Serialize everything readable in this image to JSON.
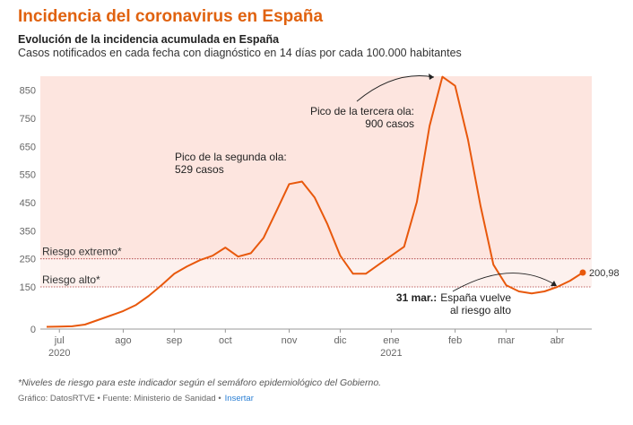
{
  "chart_data": {
    "type": "line",
    "title": "Incidencia del coronavirus en España",
    "subtitle": "Evolución de la incidencia acumulada en España",
    "description": "Casos notificados en cada fecha con diagnóstico en 14 días por cada 100.000 habitantes",
    "categories": [
      null,
      "jul",
      null,
      null,
      null,
      null,
      "ago",
      null,
      null,
      null,
      "sep",
      null,
      null,
      null,
      "oct",
      null,
      null,
      null,
      null,
      "nov",
      null,
      null,
      null,
      "dic",
      null,
      null,
      null,
      "ene",
      null,
      null,
      null,
      null,
      "feb",
      null,
      null,
      null,
      "mar",
      null,
      null,
      null,
      "abr",
      null,
      null
    ],
    "category_years": [
      null,
      "2020",
      null,
      null,
      null,
      null,
      null,
      null,
      null,
      null,
      null,
      null,
      null,
      null,
      null,
      null,
      null,
      null,
      null,
      null,
      null,
      null,
      null,
      null,
      null,
      null,
      null,
      "2021",
      null,
      null,
      null,
      null,
      null,
      null,
      null,
      null,
      null,
      null,
      null,
      null,
      null,
      null,
      null
    ],
    "values": [
      8,
      9,
      10,
      16,
      32,
      48,
      64,
      86,
      118,
      156,
      197,
      223,
      245,
      261,
      290,
      258,
      270,
      325,
      420,
      516,
      525,
      468,
      373,
      261,
      197,
      197,
      229,
      261,
      293,
      452,
      723,
      898,
      866,
      675,
      436,
      229,
      156,
      134,
      127,
      134,
      150,
      172,
      200.98
    ],
    "value_labels": [
      null,
      null,
      null,
      null,
      null,
      null,
      null,
      null,
      null,
      null,
      null,
      null,
      null,
      null,
      null,
      null,
      null,
      null,
      null,
      null,
      null,
      null,
      null,
      null,
      null,
      null,
      null,
      null,
      null,
      null,
      null,
      null,
      null,
      null,
      null,
      null,
      null,
      null,
      null,
      null,
      null,
      null,
      "200,98"
    ],
    "color": "#e8580c",
    "ylim": [
      0,
      900
    ],
    "yticks": [
      0,
      150,
      250,
      350,
      450,
      550,
      650,
      750,
      850
    ],
    "risk_levels": [
      {
        "label": "Riesgo extremo*",
        "value": 250,
        "color": "#fde5df"
      },
      {
        "label": "Riesgo alto*",
        "value": 150,
        "color": "#fdf1ee"
      }
    ],
    "annotations": [
      {
        "lines": [
          "Pico de la segunda ola:",
          "529 casos"
        ]
      },
      {
        "lines": [
          "Pico de la tercera ola:",
          "900 casos"
        ]
      },
      {
        "bold": "31 mar.:",
        "lines": [
          "España vuelve",
          "al riesgo alto"
        ]
      }
    ],
    "note": "*Niveles de riesgo para este indicador según el semáforo epidemiológico del Gobierno.",
    "source": "Gráfico: DatosRTVE • Fuente: Ministerio de Sanidad •",
    "link": "Insertar"
  }
}
